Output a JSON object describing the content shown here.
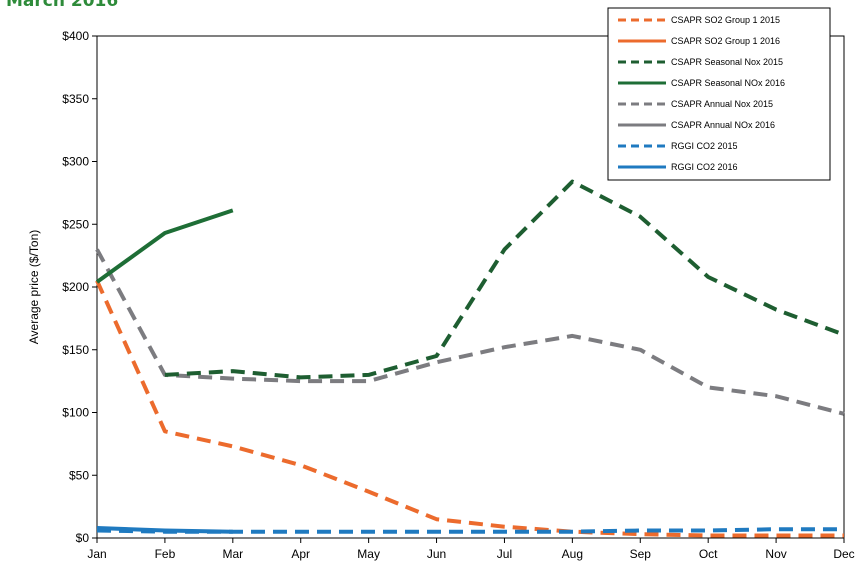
{
  "header": {
    "title": "March 2016"
  },
  "chart_data": {
    "type": "line",
    "title": "",
    "xlabel": "",
    "ylabel": "Average price ($/Ton)",
    "categories": [
      "Jan",
      "Feb",
      "Mar",
      "Apr",
      "May",
      "Jun",
      "Jul",
      "Aug",
      "Sep",
      "Oct",
      "Nov",
      "Dec"
    ],
    "ylim": [
      0,
      400
    ],
    "yticks": [
      0,
      50,
      100,
      150,
      200,
      250,
      300,
      350,
      400
    ],
    "ytick_labels": [
      "$0",
      "$50",
      "$100",
      "$150",
      "$200",
      "$250",
      "$300",
      "$350",
      "$400"
    ],
    "grid": false,
    "legend_position": "top-right",
    "series": [
      {
        "name": "CSAPR SO2 Group 1 2015",
        "color": "#ec6b2d",
        "dash": "dashed",
        "values": [
          205,
          85,
          73,
          58,
          37,
          15,
          9,
          5,
          3,
          2,
          2,
          2
        ]
      },
      {
        "name": "CSAPR SO2 Group 1 2016",
        "color": "#ec6b2d",
        "dash": "solid",
        "values": [
          null,
          null,
          null,
          null,
          null,
          null,
          null,
          null,
          null,
          null,
          null,
          null
        ]
      },
      {
        "name": "CSAPR Seasonal Nox 2015",
        "color": "#1e5e31",
        "dash": "dashed",
        "values": [
          null,
          130,
          133,
          128,
          130,
          145,
          230,
          284,
          256,
          208,
          182,
          162
        ]
      },
      {
        "name": "CSAPR Seasonal NOx 2016",
        "color": "#1e6e36",
        "dash": "solid",
        "values": [
          204,
          243,
          261,
          null,
          null,
          null,
          null,
          null,
          null,
          null,
          null,
          null
        ]
      },
      {
        "name": "CSAPR Annual Nox 2015",
        "color": "#7c7c80",
        "dash": "dashed",
        "values": [
          230,
          130,
          127,
          125,
          125,
          140,
          152,
          161,
          150,
          120,
          113,
          99
        ]
      },
      {
        "name": "CSAPR Annual NOx 2016",
        "color": "#7c7c80",
        "dash": "solid",
        "values": [
          232,
          null,
          null,
          null,
          null,
          null,
          null,
          null,
          null,
          null,
          null,
          null
        ]
      },
      {
        "name": "RGGI CO2 2015",
        "color": "#1f7ac0",
        "dash": "dashed",
        "values": [
          6,
          5,
          5,
          5,
          5,
          5,
          5,
          5,
          6,
          6,
          7,
          7
        ]
      },
      {
        "name": "RGGI CO2 2016",
        "color": "#1f7ac0",
        "dash": "solid",
        "values": [
          8,
          6,
          5,
          null,
          null,
          null,
          null,
          null,
          null,
          null,
          null,
          null
        ]
      }
    ]
  }
}
